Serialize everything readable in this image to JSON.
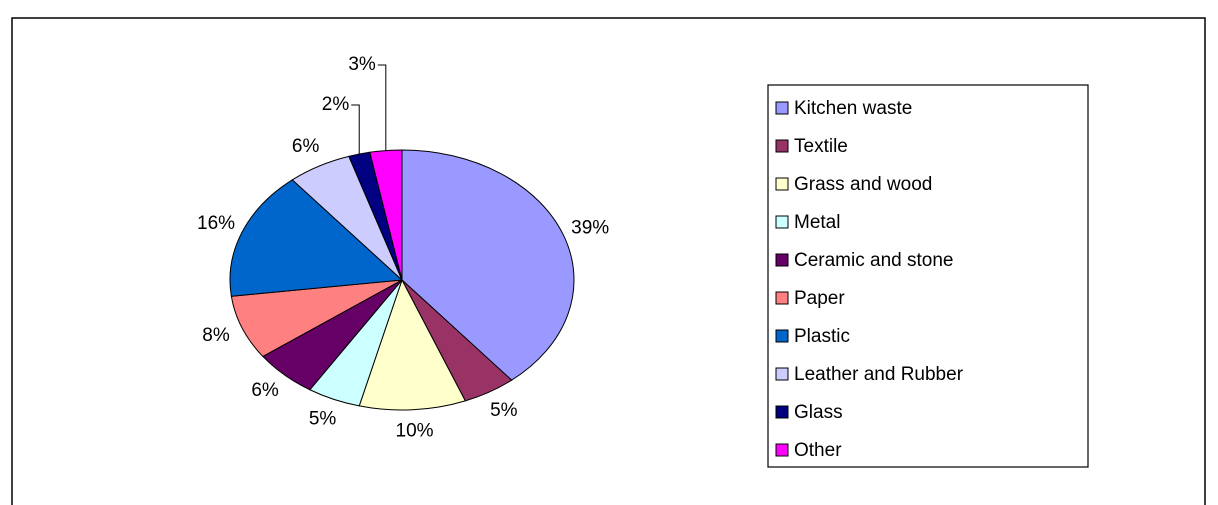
{
  "chart_data": {
    "type": "pie",
    "categories": [
      "Kitchen waste",
      "Textile",
      "Grass and wood",
      "Metal",
      "Ceramic and stone",
      "Paper",
      "Plastic",
      "Leather and Rubber",
      "Glass",
      "Other"
    ],
    "values": [
      39,
      5,
      10,
      5,
      6,
      8,
      16,
      6,
      2,
      3
    ],
    "value_labels": [
      "39%",
      "5%",
      "10%",
      "5%",
      "6%",
      "8%",
      "16%",
      "6%",
      "2%",
      "3%"
    ],
    "colors": [
      "#9999ff",
      "#993366",
      "#ffffcc",
      "#ccffff",
      "#660066",
      "#ff8080",
      "#0066cc",
      "#ccccff",
      "#000080",
      "#ff00ff"
    ],
    "legend": "right"
  }
}
